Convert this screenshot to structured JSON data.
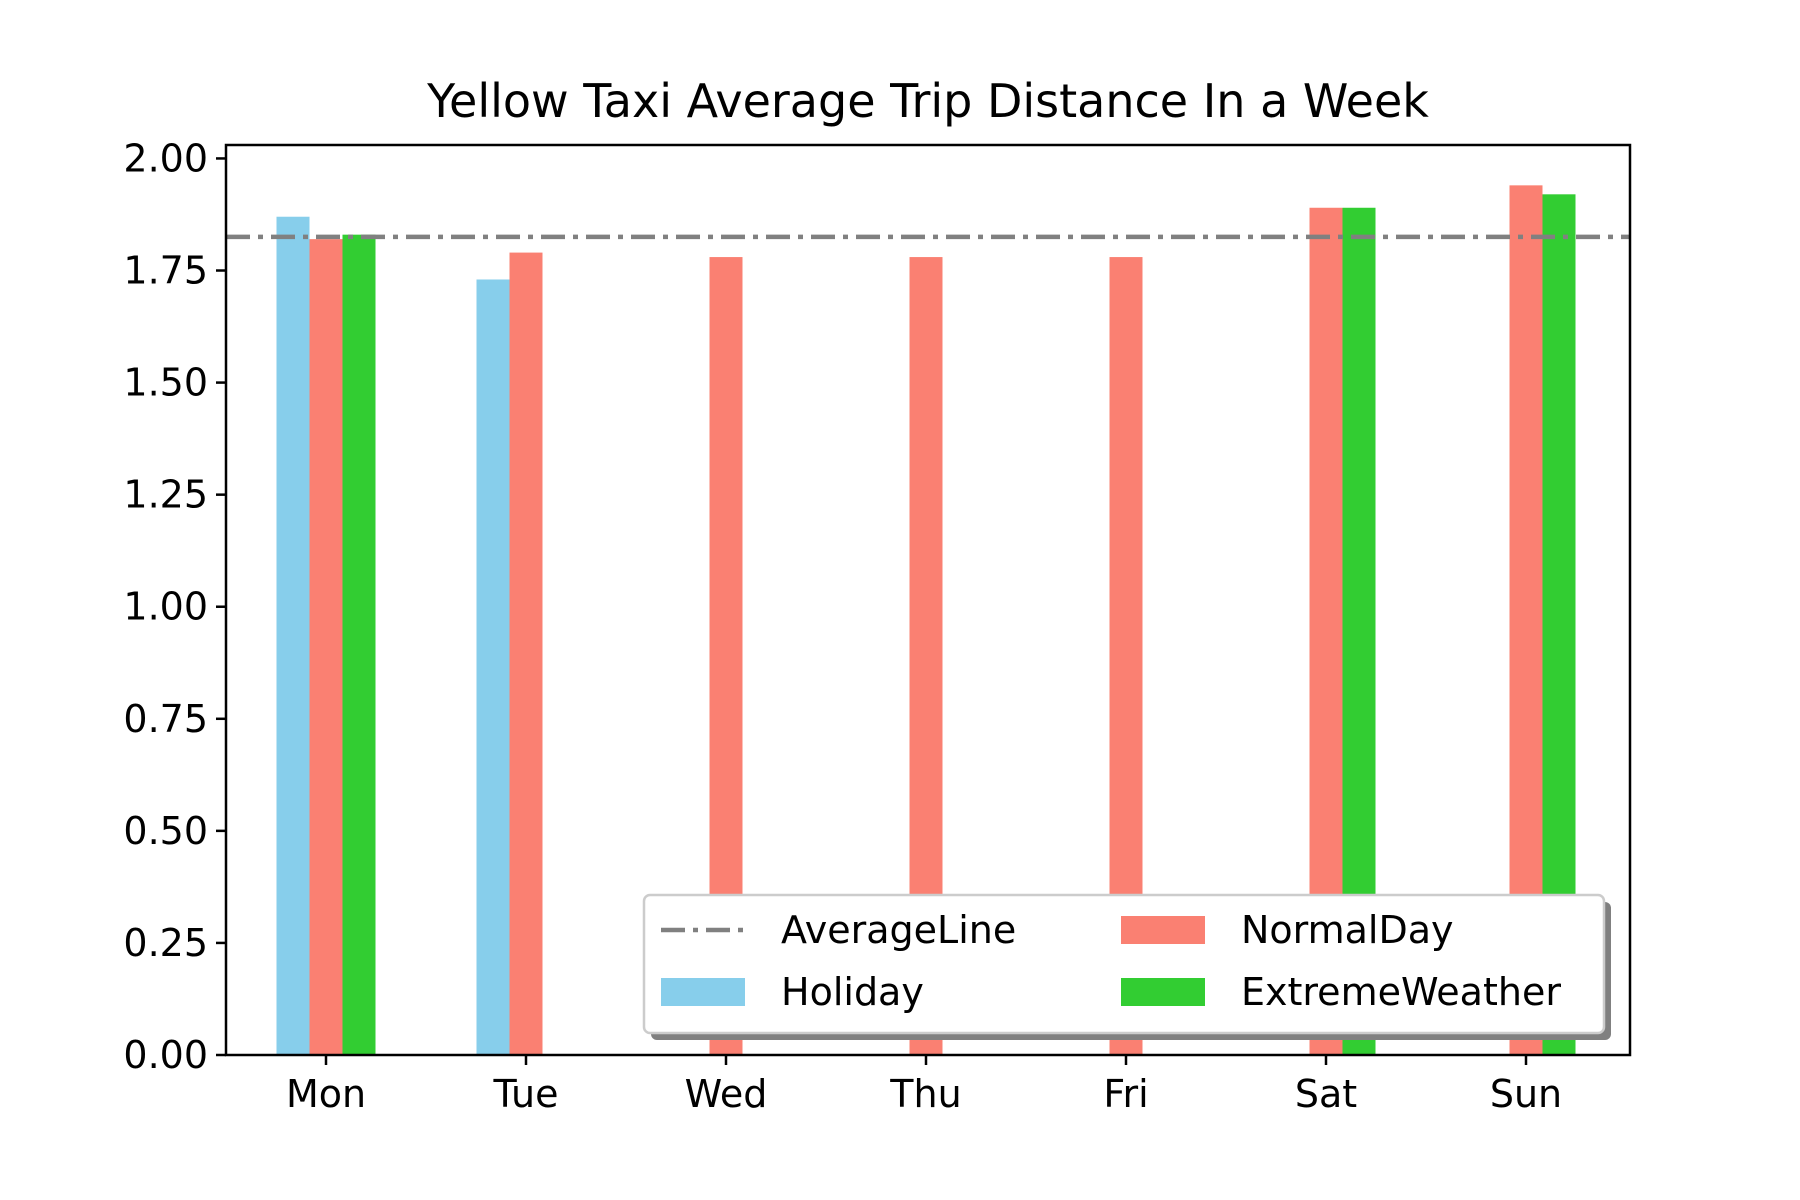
{
  "chart_data": {
    "type": "bar",
    "title": "Yellow Taxi Average Trip Distance In a Week",
    "xlabel": "",
    "ylabel": "",
    "categories": [
      "Mon",
      "Tue",
      "Wed",
      "Thu",
      "Fri",
      "Sat",
      "Sun"
    ],
    "ylim": [
      0,
      2.03
    ],
    "yticks": [
      "0.00",
      "0.25",
      "0.50",
      "0.75",
      "1.00",
      "1.25",
      "1.50",
      "1.75",
      "2.00"
    ],
    "series": [
      {
        "name": "Holiday",
        "color": "#87ceeb",
        "values": [
          1.87,
          1.73,
          null,
          null,
          null,
          null,
          null
        ]
      },
      {
        "name": "NormalDay",
        "color": "#fa8072",
        "values": [
          1.82,
          1.79,
          1.78,
          1.78,
          1.78,
          1.89,
          1.94
        ]
      },
      {
        "name": "ExtremeWeather",
        "color": "#32cd32",
        "values": [
          1.83,
          null,
          null,
          null,
          null,
          1.89,
          1.92
        ]
      }
    ],
    "average_line": {
      "name": "AverageLine",
      "value": 1.825,
      "color": "#808080",
      "style": "dash-dot"
    },
    "legend": {
      "placement": "lower-right",
      "columns": 2,
      "entries": [
        "AverageLine",
        "NormalDay",
        "Holiday",
        "ExtremeWeather"
      ]
    },
    "grid": false
  }
}
